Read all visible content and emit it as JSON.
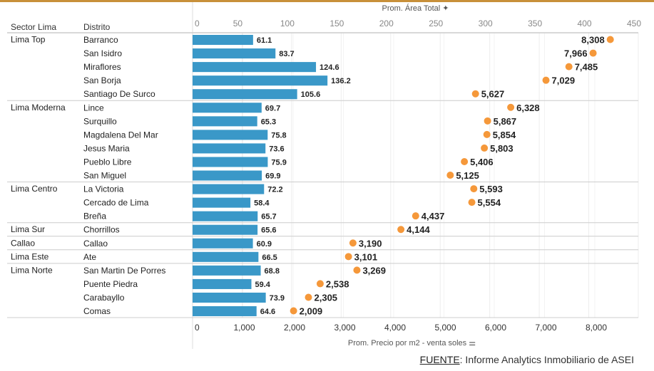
{
  "chart_data": {
    "type": "bar",
    "top_axis": {
      "title": "Prom. Área Total",
      "range": [
        0,
        450
      ],
      "ticks": [
        0,
        50,
        100,
        150,
        200,
        250,
        300,
        350,
        400,
        450
      ]
    },
    "bottom_axis": {
      "title": "Prom. Precio por m2 - venta soles",
      "range": [
        0,
        8800
      ],
      "ticks": [
        0,
        1000,
        2000,
        3000,
        4000,
        5000,
        6000,
        7000,
        8000
      ],
      "tick_labels": [
        "0",
        "1,000",
        "2,000",
        "3,000",
        "4,000",
        "5,000",
        "6,000",
        "7,000",
        "8,000"
      ]
    },
    "row_headers": [
      "Sector Lima",
      "Distrito"
    ],
    "colors": {
      "bar": "#3a98c8",
      "dot": "#f5983a",
      "accent_line": "#c8903a"
    },
    "groups": [
      {
        "sector": "Lima Top",
        "rows": [
          {
            "district": "Barranco",
            "area": 61.1,
            "price": 8308,
            "price_label": "8,308"
          },
          {
            "district": "San Isidro",
            "area": 83.7,
            "price": 7966,
            "price_label": "7,966"
          },
          {
            "district": "Miraflores",
            "area": 124.6,
            "price": 7485,
            "price_label": "7,485"
          },
          {
            "district": "San Borja",
            "area": 136.2,
            "price": 7029,
            "price_label": "7,029"
          },
          {
            "district": "Santiago De Surco",
            "area": 105.6,
            "price": 5627,
            "price_label": "5,627"
          }
        ]
      },
      {
        "sector": "Lima Moderna",
        "rows": [
          {
            "district": "Lince",
            "area": 69.7,
            "price": 6328,
            "price_label": "6,328"
          },
          {
            "district": "Surquillo",
            "area": 65.3,
            "price": 5867,
            "price_label": "5,867"
          },
          {
            "district": "Magdalena Del Mar",
            "area": 75.8,
            "price": 5854,
            "price_label": "5,854"
          },
          {
            "district": "Jesus Maria",
            "area": 73.6,
            "price": 5803,
            "price_label": "5,803"
          },
          {
            "district": "Pueblo Libre",
            "area": 75.9,
            "price": 5406,
            "price_label": "5,406"
          },
          {
            "district": "San Miguel",
            "area": 69.9,
            "price": 5125,
            "price_label": "5,125"
          }
        ]
      },
      {
        "sector": "Lima Centro",
        "rows": [
          {
            "district": "La Victoria",
            "area": 72.2,
            "price": 5593,
            "price_label": "5,593"
          },
          {
            "district": "Cercado de Lima",
            "area": 58.4,
            "price": 5554,
            "price_label": "5,554"
          },
          {
            "district": "Breña",
            "area": 65.7,
            "price": 4437,
            "price_label": "4,437"
          }
        ]
      },
      {
        "sector": "Lima Sur",
        "rows": [
          {
            "district": "Chorrillos",
            "area": 65.6,
            "price": 4144,
            "price_label": "4,144"
          }
        ]
      },
      {
        "sector": "Callao",
        "rows": [
          {
            "district": "Callao",
            "area": 60.9,
            "price": 3190,
            "price_label": "3,190"
          }
        ]
      },
      {
        "sector": "Lima Este",
        "rows": [
          {
            "district": "Ate",
            "area": 66.5,
            "price": 3101,
            "price_label": "3,101"
          }
        ]
      },
      {
        "sector": "Lima Norte",
        "rows": [
          {
            "district": "San Martin De Porres",
            "area": 68.8,
            "price": 3269,
            "price_label": "3,269"
          },
          {
            "district": "Puente Piedra",
            "area": 59.4,
            "price": 2538,
            "price_label": "2,538"
          },
          {
            "district": "Carabayllo",
            "area": 73.9,
            "price": 2305,
            "price_label": "2,305"
          },
          {
            "district": "Comas",
            "area": 64.6,
            "price": 2009,
            "price_label": "2,009"
          }
        ]
      }
    ]
  },
  "source": {
    "label": "FUENTE",
    "text": ": Informe Analytics Inmobiliario de ASEI"
  }
}
